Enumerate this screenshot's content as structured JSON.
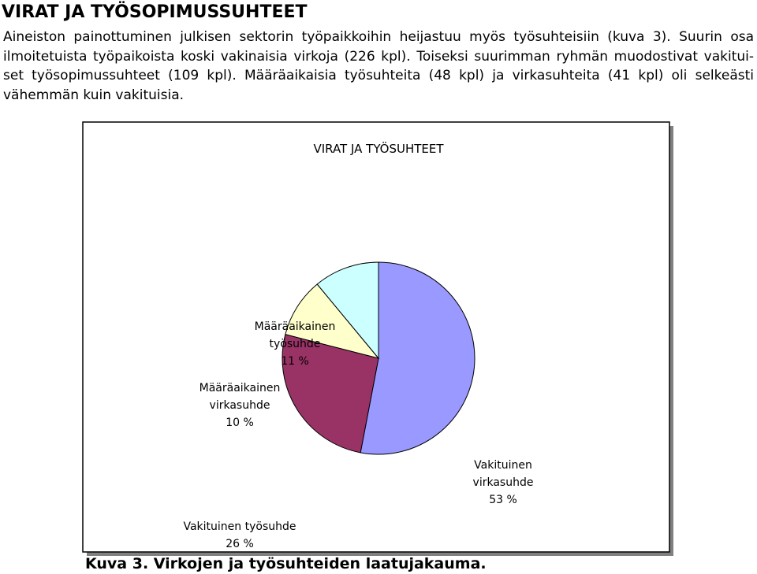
{
  "heading": "VIRAT JA TYÖSOPIMUSSUHTEET",
  "intro_lines": [
    "Aineiston painottuminen julkisen sektorin työpaikkoihin heijastuu myös työsuhteisiin (kuva 3). Suurin osa",
    "ilmoitetuista työpaikoista koski vakinaisia virkoja (226 kpl). Toiseksi suurimman ryhmän muodostivat vakitui-",
    "set työsopimussuhteet (109 kpl). Määräaikaisia työsuhteita (48 kpl) ja virkasuhteita (41 kpl) oli selkeästi",
    "vähemmän kuin vakituisia."
  ],
  "caption": "Kuva 3. Virkojen ja työsuhteiden laatujakauma.",
  "chart_data": {
    "type": "pie",
    "title": "VIRAT JA TYÖSUHTEET",
    "start_angle_deg": 0,
    "direction": "clockwise",
    "slices": [
      {
        "label_lines": [
          "Vakituinen",
          "virkasuhde",
          "53 %"
        ],
        "value": 53,
        "color": "#9999FF"
      },
      {
        "label_lines": [
          "Vakituinen työsuhde",
          "26 %"
        ],
        "value": 26,
        "color": "#993366"
      },
      {
        "label_lines": [
          "Määräaikainen",
          "virkasuhde",
          "10 %"
        ],
        "value": 10,
        "color": "#FFFFCC"
      },
      {
        "label_lines": [
          "Määräaikainen",
          "työsuhde",
          "11 %"
        ],
        "value": 11,
        "color": "#CCFFFF"
      }
    ],
    "legend": "none",
    "frame_shadow_color": "#808080"
  }
}
